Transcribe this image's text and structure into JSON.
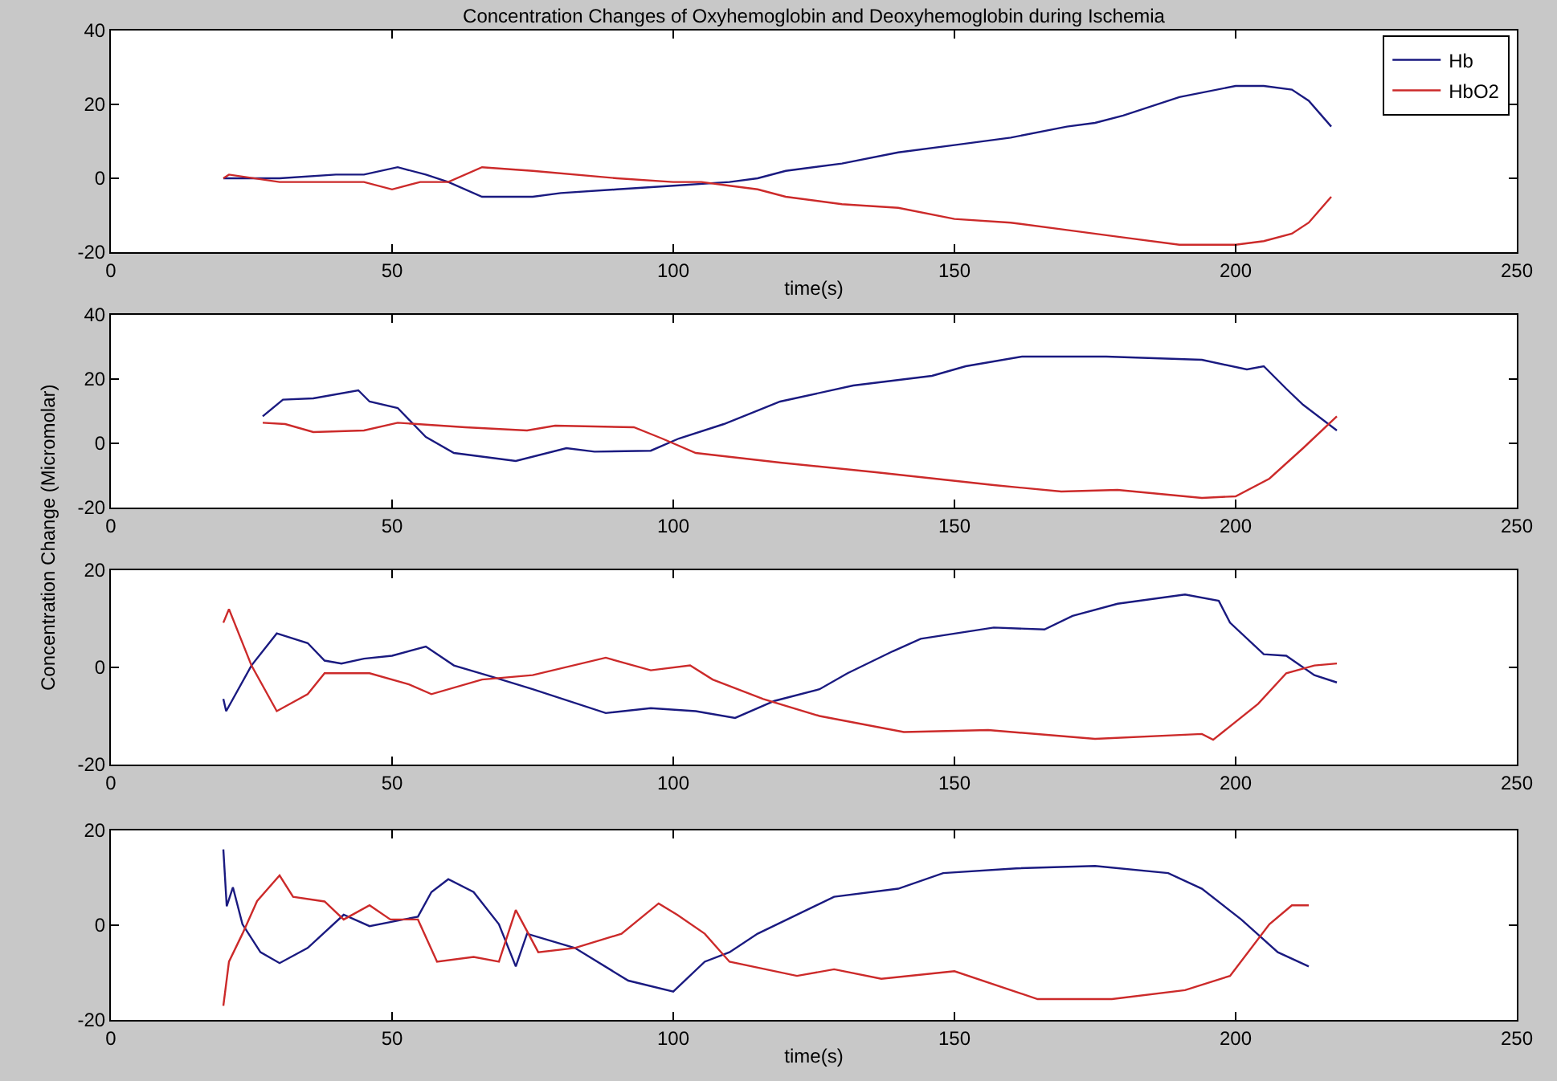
{
  "chart_data": [
    {
      "type": "line",
      "title": "Concentration Changes of Oxyhemoglobin and Deoxyhemoglobin during Ischemia",
      "xlabel": "time(s)",
      "xlim": [
        0,
        250
      ],
      "xticks": [
        0,
        50,
        100,
        150,
        200,
        250
      ],
      "ylim": [
        -20,
        40
      ],
      "yticks": [
        -20,
        0,
        20,
        40
      ],
      "legend": "top right",
      "series": [
        {
          "name": "Hb",
          "color": "#1a1a80",
          "x": [
            20,
            30,
            40,
            45,
            51,
            56,
            60,
            66,
            75,
            80,
            90,
            100,
            110,
            115,
            120,
            130,
            140,
            150,
            160,
            170,
            175,
            180,
            190,
            200,
            205,
            210,
            213,
            217
          ],
          "values": [
            0,
            0,
            1,
            1,
            3,
            1,
            -1,
            -5,
            -5,
            -4,
            -3,
            -2,
            -1,
            0,
            2,
            4,
            7,
            9,
            11,
            14,
            15,
            17,
            22,
            25,
            25,
            24,
            21,
            14
          ]
        },
        {
          "name": "HbO2",
          "color": "#cc2a2a",
          "x": [
            20,
            21,
            30,
            40,
            45,
            50,
            55,
            60,
            66,
            75,
            90,
            100,
            105,
            110,
            115,
            120,
            130,
            140,
            150,
            160,
            170,
            180,
            190,
            200,
            205,
            210,
            213,
            217
          ],
          "values": [
            0,
            1,
            -1,
            -1,
            -1,
            -3,
            -1,
            -1,
            3,
            2,
            0,
            -1,
            -1,
            -2,
            -3,
            -5,
            -7,
            -8,
            -11,
            -12,
            -14,
            -16,
            -18,
            -18,
            -17,
            -15,
            -12,
            -5
          ]
        }
      ]
    },
    {
      "type": "line",
      "ylabel": "Concentration Change (Micromolar)",
      "xlim": [
        0,
        250
      ],
      "xticks": [
        0,
        50,
        100,
        150,
        200,
        250
      ],
      "ylim": [
        -20,
        40
      ],
      "yticks": [
        -20,
        0,
        20,
        40
      ],
      "series": [
        {
          "color": "#1a1a80",
          "x": [
            27,
            30.6,
            36,
            44,
            46,
            51,
            56,
            61,
            72,
            81,
            86,
            96,
            101,
            109,
            119,
            132,
            146,
            152,
            162,
            177,
            194,
            202,
            205,
            209,
            212,
            218
          ],
          "values": [
            8.4,
            13.6,
            14,
            16.5,
            13,
            11,
            2,
            -3,
            -5.5,
            -1.5,
            -2.6,
            -2.3,
            1.5,
            6,
            13,
            18,
            21,
            24,
            27,
            27,
            26,
            23,
            24,
            17,
            12,
            4
          ]
        },
        {
          "color": "#cc2a2a",
          "x": [
            27,
            31,
            36,
            45,
            51,
            63,
            74,
            79,
            93,
            98,
            104,
            119,
            136,
            157,
            169,
            179,
            194,
            200,
            206,
            212,
            218
          ],
          "values": [
            6.4,
            6,
            3.5,
            4,
            6.4,
            5,
            4,
            5.5,
            5,
            1.5,
            -3,
            -6,
            -9,
            -13,
            -15,
            -14.5,
            -17,
            -16.5,
            -11,
            -1.5,
            8.4
          ]
        }
      ]
    },
    {
      "type": "line",
      "xlim": [
        0,
        250
      ],
      "xticks": [
        0,
        50,
        100,
        150,
        200,
        250
      ],
      "ylim": [
        -20,
        20
      ],
      "yticks": [
        -20,
        0,
        20
      ],
      "series": [
        {
          "color": "#1a1a80",
          "x": [
            20,
            20.5,
            25,
            29.5,
            35,
            38,
            41,
            45,
            50,
            56,
            61,
            68,
            75,
            88,
            96,
            104,
            111,
            118,
            126,
            131,
            139,
            144,
            157,
            166,
            171,
            179,
            191,
            197,
            199,
            205,
            209,
            214,
            218
          ],
          "values": [
            -6.5,
            -9,
            0.4,
            7,
            5,
            1.4,
            0.8,
            1.8,
            2.4,
            4.3,
            0.4,
            -2,
            -4.5,
            -9.4,
            -8.4,
            -9,
            -10.4,
            -6.9,
            -4.5,
            -1.2,
            3.3,
            5.9,
            8.2,
            7.8,
            10.6,
            13.1,
            15,
            13.7,
            9.2,
            2.7,
            2.4,
            -1.6,
            -3.1
          ]
        },
        {
          "color": "#cc2a2a",
          "x": [
            20,
            21,
            25,
            29.5,
            35,
            38,
            46,
            53,
            57,
            66,
            75,
            88,
            96,
            103,
            107,
            116,
            126,
            141,
            156,
            175,
            194,
            196,
            204,
            209,
            214,
            218
          ],
          "values": [
            9.2,
            12,
            0.4,
            -9,
            -5.5,
            -1.2,
            -1.2,
            -3.5,
            -5.5,
            -2.5,
            -1.6,
            2,
            -0.6,
            0.4,
            -2.5,
            -6.5,
            -10,
            -13.3,
            -12.9,
            -14.7,
            -13.7,
            -14.9,
            -7.5,
            -1.2,
            0.4,
            0.8
          ]
        }
      ]
    },
    {
      "type": "line",
      "xlabel": "time(s)",
      "xlim": [
        0,
        250
      ],
      "xticks": [
        0,
        50,
        100,
        150,
        200,
        250
      ],
      "ylim": [
        -20,
        20
      ],
      "yticks": [
        -20,
        0,
        20
      ],
      "series": [
        {
          "color": "#1a1a80",
          "x": [
            20,
            20.6,
            21.7,
            23.4,
            26.6,
            30,
            35,
            41.4,
            46,
            54.6,
            57,
            60,
            64.5,
            69,
            72,
            74,
            82.5,
            92,
            100,
            105.6,
            110,
            115,
            128.6,
            140,
            148,
            161,
            175,
            188,
            194,
            201,
            207.5,
            213
          ],
          "values": [
            16,
            4,
            8,
            0.2,
            -5.7,
            -8,
            -4.8,
            2.2,
            -0.2,
            1.8,
            7,
            9.7,
            7,
            0.2,
            -8.7,
            -1.8,
            -4.8,
            -11.7,
            -14,
            -7.7,
            -5.7,
            -1.8,
            6,
            7.7,
            11,
            12,
            12.5,
            11,
            7.7,
            1.2,
            -5.7,
            -8.7
          ]
        },
        {
          "color": "#cc2a2a",
          "x": [
            20,
            21,
            23.4,
            26,
            30,
            32.4,
            38,
            41.4,
            46,
            49.7,
            54.6,
            58,
            64.5,
            69,
            72,
            76,
            82.5,
            90.8,
            97.4,
            100.7,
            105.6,
            110,
            122,
            128.6,
            137,
            150,
            164.8,
            178,
            191,
            199,
            206,
            210,
            213
          ],
          "values": [
            -17,
            -7.7,
            -1.8,
            5.1,
            10.5,
            6,
            5,
            1.2,
            4.2,
            1.2,
            1.2,
            -7.7,
            -6.7,
            -7.7,
            3.2,
            -5.7,
            -4.8,
            -1.8,
            4.6,
            2.2,
            -1.8,
            -7.7,
            -10.7,
            -9.3,
            -11.3,
            -9.7,
            -15.6,
            -15.6,
            -13.7,
            -10.7,
            0.2,
            4.2,
            4.2
          ]
        }
      ]
    }
  ]
}
